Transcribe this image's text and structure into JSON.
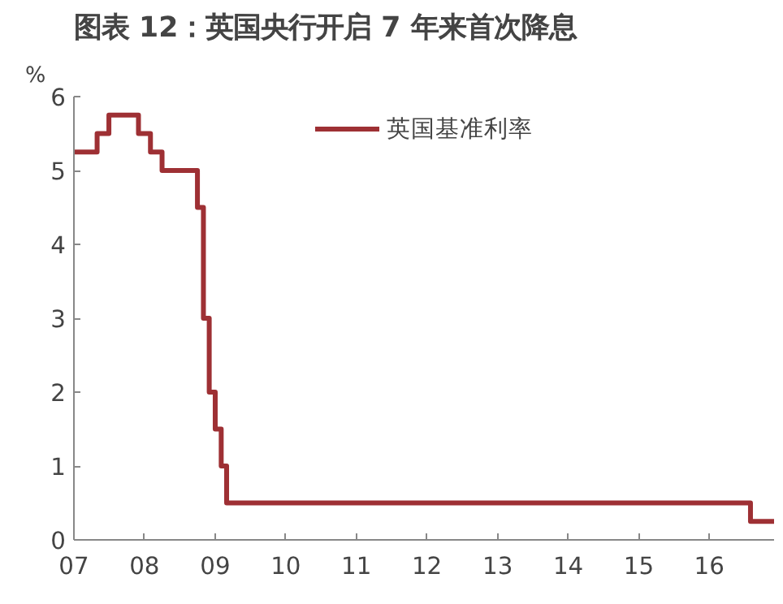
{
  "chart_data": {
    "type": "step",
    "title": "图表 12：英国央行开启 7 年来首次降息",
    "ylabel": "%",
    "x": [
      "2007-01",
      "2007-05",
      "2007-07",
      "2007-12",
      "2008-02",
      "2008-04",
      "2008-10",
      "2008-11",
      "2008-12",
      "2009-01",
      "2009-02",
      "2009-03",
      "2016-08",
      "2016-12"
    ],
    "series": [
      {
        "name": "英国基准利率",
        "color": "#9e3034",
        "values": [
          5.25,
          5.5,
          5.75,
          5.5,
          5.25,
          5.0,
          4.5,
          3.0,
          2.0,
          1.5,
          1.0,
          0.5,
          0.25,
          0.25
        ]
      }
    ],
    "xlim": [
      "2007-01",
      "2016-12"
    ],
    "xticks": [
      {
        "value": "2007",
        "label": "07"
      },
      {
        "value": "2008",
        "label": "08"
      },
      {
        "value": "2009",
        "label": "09"
      },
      {
        "value": "2010",
        "label": "10"
      },
      {
        "value": "2011",
        "label": "11"
      },
      {
        "value": "2012",
        "label": "12"
      },
      {
        "value": "2013",
        "label": "13"
      },
      {
        "value": "2014",
        "label": "14"
      },
      {
        "value": "2015",
        "label": "15"
      },
      {
        "value": "2016",
        "label": "16"
      }
    ],
    "ylim": [
      0,
      6
    ],
    "yticks": [
      0,
      1,
      2,
      3,
      4,
      5,
      6
    ],
    "grid": false,
    "legend": "top"
  }
}
